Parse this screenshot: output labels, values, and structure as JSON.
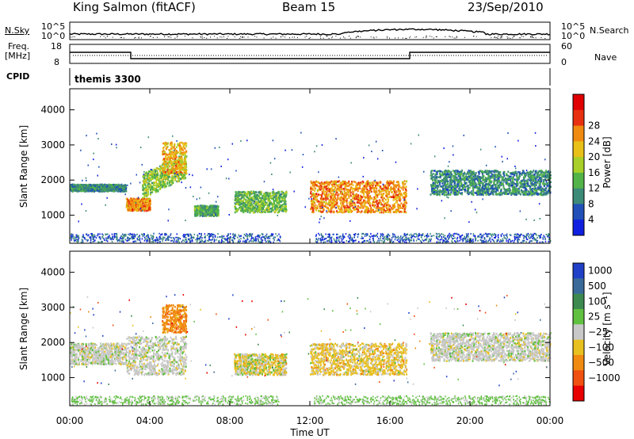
{
  "header": {
    "station": "King Salmon (fitACF)",
    "beam": "Beam 15",
    "date": "23/Sep/2010"
  },
  "noise_panel": {
    "left_label": "N.Sky",
    "right_label": "N.Search",
    "left_ticks": [
      "10^5",
      "10^0"
    ],
    "right_ticks": [
      "10^5",
      "10^0"
    ]
  },
  "freq_panel": {
    "left_label_1": "Freq.",
    "left_label_2": "[MHz]",
    "right_label": "Nave",
    "left_ticks": [
      "18",
      "8"
    ],
    "right_ticks": [
      "60",
      "0"
    ]
  },
  "cpid": {
    "label": "CPID",
    "value": "themis 3300"
  },
  "chart_data": [
    {
      "type": "heatmap",
      "xlabel": "",
      "ylabel": "Slant Range [km]",
      "ylim": [
        200,
        4600
      ],
      "yticks": [
        "1000",
        "2000",
        "3000",
        "4000"
      ],
      "colorbar": {
        "label": "Power [dB]",
        "ticks": [
          "4",
          "8",
          "12",
          "16",
          "20",
          "24",
          "28"
        ],
        "colors": [
          "#1020e0",
          "#2050b8",
          "#3c8a78",
          "#52b448",
          "#a8d028",
          "#e8c018",
          "#f08a10",
          "#e83010",
          "#e00000"
        ]
      },
      "series": [
        {
          "name": "",
          "x": [
            0.0,
            2.8
          ],
          "y": [
            1700,
            1900
          ],
          "values": [
            8,
            10
          ]
        },
        {
          "name": "",
          "x": [
            2.8,
            4.0
          ],
          "y": [
            1150,
            1500
          ],
          "values": [
            24,
            20
          ]
        },
        {
          "name": "",
          "x": [
            3.6,
            5.8
          ],
          "y": [
            1500,
            2200
          ],
          "values": [
            16,
            12
          ]
        },
        {
          "name": "",
          "x": [
            4.6,
            5.8
          ],
          "y": [
            2200,
            3100
          ],
          "values": [
            22,
            18
          ]
        },
        {
          "name": "",
          "x": [
            6.2,
            7.4
          ],
          "y": [
            1000,
            1300
          ],
          "values": [
            12,
            10
          ]
        },
        {
          "name": "",
          "x": [
            8.2,
            10.8
          ],
          "y": [
            1100,
            1700
          ],
          "values": [
            14,
            12
          ]
        },
        {
          "name": "",
          "x": [
            12.0,
            16.8
          ],
          "y": [
            1100,
            2000
          ],
          "values": [
            24,
            20
          ]
        },
        {
          "name": "",
          "x": [
            18.0,
            24.0
          ],
          "y": [
            1600,
            2300
          ],
          "values": [
            8,
            10
          ]
        }
      ]
    },
    {
      "type": "heatmap",
      "xlabel": "Time UT",
      "ylabel": "Slant Range [km]",
      "ylim": [
        200,
        4600
      ],
      "yticks": [
        "1000",
        "2000",
        "3000",
        "4000"
      ],
      "xticks": [
        "00:00",
        "04:00",
        "08:00",
        "12:00",
        "16:00",
        "20:00",
        "00:00"
      ],
      "colorbar": {
        "label": "Velocity [m s⁻¹]",
        "ticks": [
          "1000",
          "500",
          "100",
          "25",
          "−25",
          "−100",
          "−500",
          "−1000"
        ],
        "colors": [
          "#2040c8",
          "#3a6a9a",
          "#3c8a50",
          "#60c040",
          "#c8c8c8",
          "#e8c020",
          "#f08a10",
          "#f05010",
          "#e80000"
        ]
      },
      "series": [
        {
          "name": "",
          "x": [
            0.0,
            2.8
          ],
          "y": [
            1400,
            2000
          ],
          "values": [
            0,
            0
          ]
        },
        {
          "name": "",
          "x": [
            2.8,
            5.8
          ],
          "y": [
            1100,
            2200
          ],
          "values": [
            0,
            -25
          ]
        },
        {
          "name": "",
          "x": [
            4.6,
            5.8
          ],
          "y": [
            2300,
            3100
          ],
          "values": [
            -100,
            -200
          ]
        },
        {
          "name": "",
          "x": [
            8.2,
            10.8
          ],
          "y": [
            1100,
            1700
          ],
          "values": [
            -100,
            50
          ]
        },
        {
          "name": "",
          "x": [
            12.0,
            16.8
          ],
          "y": [
            1100,
            2000
          ],
          "values": [
            -100,
            0
          ]
        },
        {
          "name": "",
          "x": [
            18.0,
            24.0
          ],
          "y": [
            1500,
            2300
          ],
          "values": [
            0,
            0
          ]
        }
      ]
    }
  ]
}
